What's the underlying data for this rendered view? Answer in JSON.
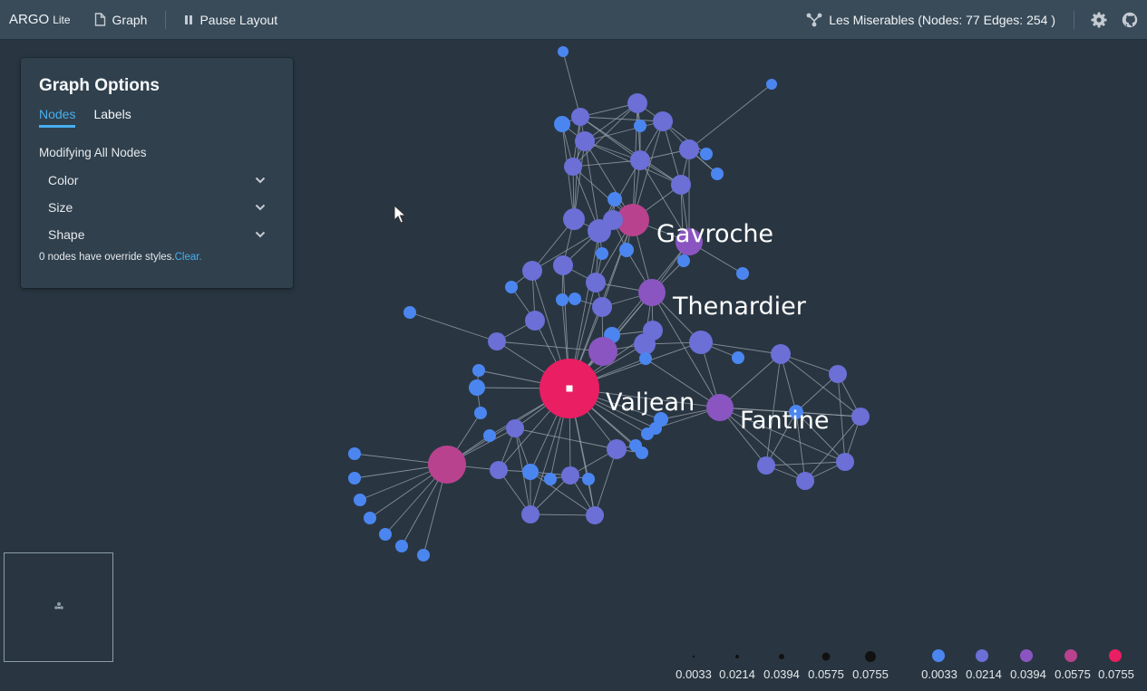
{
  "header": {
    "brand": "ARGO",
    "brand_suffix": "Lite",
    "graph_label": "Graph",
    "pause_label": "Pause Layout",
    "dataset_label": "Les Miserables (Nodes: 77 Edges: 254 )"
  },
  "panel": {
    "title": "Graph Options",
    "tabs": [
      {
        "label": "Nodes",
        "active": true
      },
      {
        "label": "Labels",
        "active": false
      }
    ],
    "modifying": "Modifying All Nodes",
    "options": [
      "Color",
      "Size",
      "Shape"
    ],
    "override_text": "0 nodes have override styles.",
    "clear_label": "Clear."
  },
  "graph": {
    "labels": [
      "Gavroche",
      "Thenardier",
      "Valjean",
      "Fantine"
    ]
  },
  "legend": {
    "size_values": [
      "0.0033",
      "0.0214",
      "0.0394",
      "0.0575",
      "0.0755"
    ],
    "color_values": [
      "0.0033",
      "0.0214",
      "0.0394",
      "0.0575",
      "0.0755"
    ],
    "colors": [
      "#4b86f0",
      "#6b6fd6",
      "#8a55c0",
      "#b9428e",
      "#e91e63"
    ]
  },
  "colors": {
    "background": "#293642",
    "topbar": "#394b59",
    "panel": "#30404d",
    "accent": "#48aff0",
    "edge": "#9aa3ab"
  },
  "icons": {
    "graph": "document-icon",
    "pause": "pause-icon",
    "dataset": "graph-icon",
    "settings": "gear-icon",
    "github": "github-icon",
    "dropdown": "chevron-down-icon",
    "cursor": "mouse-cursor-icon"
  }
}
